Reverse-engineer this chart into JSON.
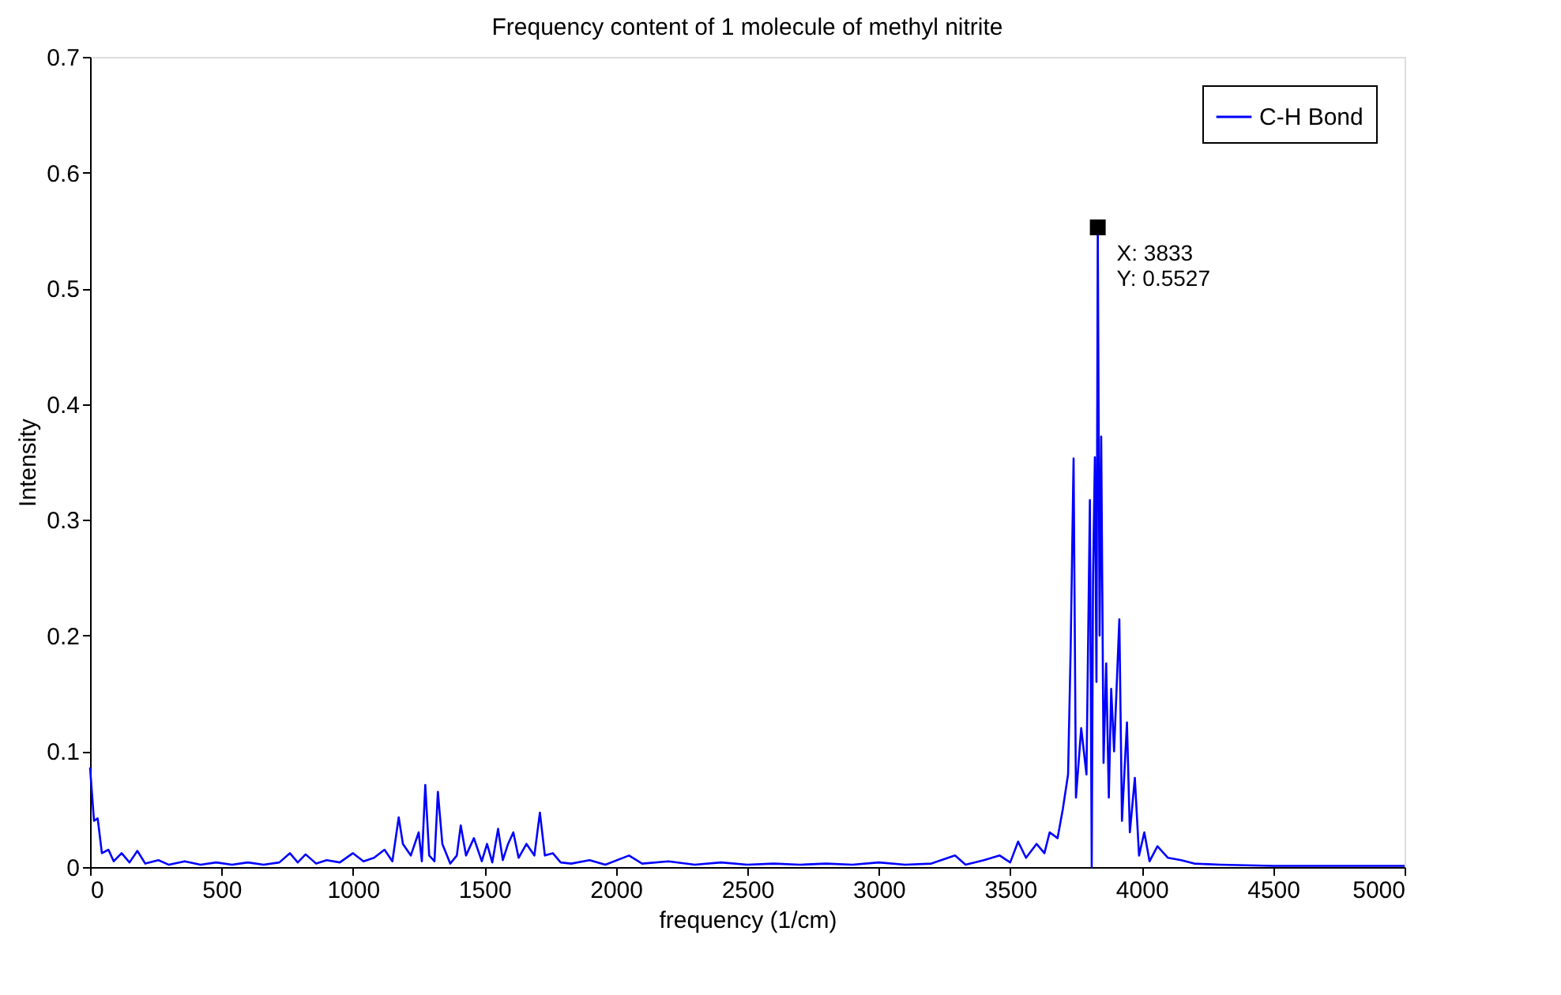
{
  "chart_data": {
    "type": "line",
    "title": "Frequency content of 1 molecule of methyl nitrite",
    "xlabel": "frequency (1/cm)",
    "ylabel": "Intensity",
    "xlim": [
      0,
      5000
    ],
    "xticks": [
      0,
      500,
      1000,
      1500,
      2000,
      2500,
      3000,
      3500,
      4000,
      4500,
      5000
    ],
    "ylim": [
      0,
      0.7
    ],
    "yticks": [
      0,
      0.1,
      0.2,
      0.3,
      0.4,
      0.5,
      0.6,
      0.7
    ],
    "grid": false,
    "legend": "top right",
    "marker": "none",
    "line_style": "solid",
    "annotations": [
      {
        "text": "X: 3833\nY: 0.5527",
        "x": 3833,
        "y": 0.5527
      }
    ],
    "series": [
      {
        "name": "C-H Bond",
        "color": "#0000ff",
        "x": [
          0,
          15,
          29,
          45,
          70,
          90,
          120,
          150,
          180,
          210,
          260,
          300,
          360,
          420,
          480,
          540,
          600,
          660,
          720,
          760,
          790,
          820,
          860,
          900,
          950,
          1000,
          1040,
          1080,
          1120,
          1150,
          1174,
          1190,
          1220,
          1250,
          1262,
          1275,
          1290,
          1310,
          1323,
          1340,
          1370,
          1395,
          1410,
          1430,
          1460,
          1490,
          1510,
          1530,
          1552,
          1570,
          1590,
          1610,
          1630,
          1660,
          1690,
          1711,
          1730,
          1760,
          1790,
          1830,
          1900,
          1960,
          2050,
          2100,
          2200,
          2300,
          2400,
          2500,
          2600,
          2700,
          2800,
          2900,
          3000,
          3100,
          3200,
          3290,
          3330,
          3400,
          3460,
          3500,
          3530,
          3560,
          3600,
          3630,
          3650,
          3680,
          3700,
          3720,
          3730,
          3741,
          3750,
          3770,
          3790,
          3803,
          3810,
          3815,
          3822,
          3828,
          3833,
          3840,
          3846,
          3855,
          3865,
          3875,
          3884,
          3895,
          3915,
          3925,
          3944,
          3955,
          3974,
          3990,
          4010,
          4030,
          4060,
          4100,
          4150,
          4200,
          4300,
          4500,
          4700,
          5000
        ],
        "values": [
          0.086,
          0.04,
          0.042,
          0.012,
          0.015,
          0.005,
          0.012,
          0.004,
          0.014,
          0.003,
          0.006,
          0.002,
          0.005,
          0.002,
          0.004,
          0.002,
          0.004,
          0.002,
          0.004,
          0.012,
          0.004,
          0.011,
          0.003,
          0.006,
          0.004,
          0.012,
          0.005,
          0.008,
          0.015,
          0.005,
          0.043,
          0.02,
          0.01,
          0.03,
          0.005,
          0.071,
          0.01,
          0.005,
          0.065,
          0.02,
          0.003,
          0.01,
          0.036,
          0.01,
          0.025,
          0.005,
          0.02,
          0.004,
          0.033,
          0.006,
          0.02,
          0.03,
          0.008,
          0.02,
          0.01,
          0.047,
          0.01,
          0.012,
          0.004,
          0.003,
          0.006,
          0.002,
          0.01,
          0.003,
          0.005,
          0.002,
          0.004,
          0.002,
          0.003,
          0.002,
          0.003,
          0.002,
          0.004,
          0.002,
          0.003,
          0.01,
          0.002,
          0.006,
          0.01,
          0.004,
          0.022,
          0.008,
          0.02,
          0.012,
          0.03,
          0.025,
          0.05,
          0.08,
          0.19,
          0.353,
          0.06,
          0.12,
          0.08,
          0.317,
          0.0,
          0.25,
          0.354,
          0.16,
          0.5527,
          0.2,
          0.372,
          0.09,
          0.176,
          0.06,
          0.154,
          0.1,
          0.214,
          0.04,
          0.125,
          0.03,
          0.077,
          0.01,
          0.03,
          0.005,
          0.018,
          0.008,
          0.006,
          0.003,
          0.002,
          0.001,
          0.001,
          0.001
        ]
      }
    ]
  }
}
